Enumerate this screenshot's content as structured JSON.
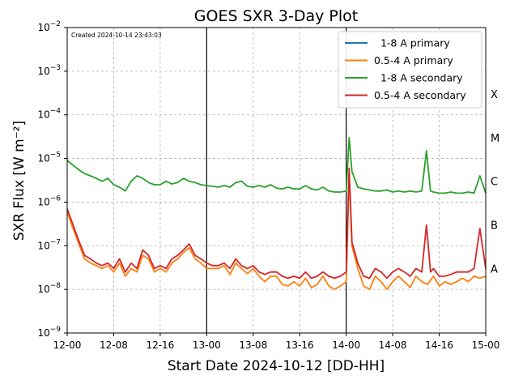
{
  "chart_data": {
    "type": "line",
    "title": "GOES SXR 3-Day Plot",
    "created_note": "Created 2024-10-14 23:43:03",
    "xlabel": "Start Date 2024-10-12 [DD-HH]",
    "ylabel": "SXR Flux [W m⁻²]",
    "x_unit": "hours since 2024-10-12 00:00 UTC",
    "xlim": [
      0,
      72
    ],
    "x_ticks": [
      {
        "hour": 0,
        "label": "12-00"
      },
      {
        "hour": 8,
        "label": "12-08"
      },
      {
        "hour": 16,
        "label": "12-16"
      },
      {
        "hour": 24,
        "label": "13-00"
      },
      {
        "hour": 32,
        "label": "13-08"
      },
      {
        "hour": 40,
        "label": "13-16"
      },
      {
        "hour": 48,
        "label": "14-00"
      },
      {
        "hour": 56,
        "label": "14-08"
      },
      {
        "hour": 64,
        "label": "14-16"
      },
      {
        "hour": 72,
        "label": "15-00"
      }
    ],
    "y_scale": "log",
    "ylim": [
      1e-09,
      0.01
    ],
    "y_ticks": [
      {
        "value": 1e-09,
        "base": "10",
        "exp": "−9"
      },
      {
        "value": 1e-08,
        "base": "10",
        "exp": "−8"
      },
      {
        "value": 1e-07,
        "base": "10",
        "exp": "−7"
      },
      {
        "value": 1e-06,
        "base": "10",
        "exp": "−6"
      },
      {
        "value": 1e-05,
        "base": "10",
        "exp": "−5"
      },
      {
        "value": 0.0001,
        "base": "10",
        "exp": "−4"
      },
      {
        "value": 0.001,
        "base": "10",
        "exp": "−3"
      },
      {
        "value": 0.01,
        "base": "10",
        "exp": "−2"
      }
    ],
    "grid": true,
    "day_boundaries": [
      24,
      48
    ],
    "flare_classes": [
      {
        "label": "A",
        "position": 3e-08
      },
      {
        "label": "B",
        "position": 3e-07
      },
      {
        "label": "C",
        "position": 3e-06
      },
      {
        "label": "M",
        "position": 3e-05
      },
      {
        "label": "X",
        "position": 0.0003
      }
    ],
    "legend_position": "top-right",
    "series": [
      {
        "name": "  1-8 A primary",
        "color": "#1f77b4",
        "points": []
      },
      {
        "name": "0.5-4 A primary",
        "color": "#ff7f0e",
        "points": [
          [
            0,
            6e-07
          ],
          [
            1,
            2.5e-07
          ],
          [
            2,
            1.1e-07
          ],
          [
            3,
            5e-08
          ],
          [
            4,
            4e-08
          ],
          [
            5,
            3.5e-08
          ],
          [
            6,
            3e-08
          ],
          [
            7,
            3.5e-08
          ],
          [
            8,
            2.5e-08
          ],
          [
            9,
            4e-08
          ],
          [
            10,
            2e-08
          ],
          [
            11,
            3e-08
          ],
          [
            12,
            2.5e-08
          ],
          [
            13,
            6e-08
          ],
          [
            14,
            5e-08
          ],
          [
            15,
            2.5e-08
          ],
          [
            16,
            3e-08
          ],
          [
            17,
            2.5e-08
          ],
          [
            18,
            4e-08
          ],
          [
            19,
            5e-08
          ],
          [
            20,
            7e-08
          ],
          [
            21,
            9e-08
          ],
          [
            22,
            5e-08
          ],
          [
            23,
            4e-08
          ],
          [
            24,
            3e-08
          ],
          [
            25,
            3e-08
          ],
          [
            26,
            3e-08
          ],
          [
            27,
            3.5e-08
          ],
          [
            28,
            2.2e-08
          ],
          [
            29,
            4e-08
          ],
          [
            30,
            3e-08
          ],
          [
            31,
            2.3e-08
          ],
          [
            32,
            3e-08
          ],
          [
            33,
            2e-08
          ],
          [
            34,
            1.5e-08
          ],
          [
            35,
            2e-08
          ],
          [
            36,
            2e-08
          ],
          [
            37,
            1.3e-08
          ],
          [
            38,
            1.2e-08
          ],
          [
            39,
            1.5e-08
          ],
          [
            40,
            1.2e-08
          ],
          [
            41,
            1.8e-08
          ],
          [
            42,
            1.1e-08
          ],
          [
            43,
            1.3e-08
          ],
          [
            44,
            2e-08
          ],
          [
            45,
            1.2e-08
          ],
          [
            46,
            1e-08
          ],
          [
            47,
            1.2e-08
          ],
          [
            48,
            1.5e-08
          ],
          [
            48.5,
            4e-06
          ],
          [
            49,
            1e-07
          ],
          [
            50,
            3e-08
          ],
          [
            51,
            1.2e-08
          ],
          [
            52,
            1e-08
          ],
          [
            53,
            2e-08
          ],
          [
            54,
            1.5e-08
          ],
          [
            55,
            1e-08
          ],
          [
            56,
            1.5e-08
          ],
          [
            57,
            2e-08
          ],
          [
            58,
            1.5e-08
          ],
          [
            59,
            1.1e-08
          ],
          [
            60,
            2e-08
          ],
          [
            61,
            1.5e-08
          ],
          [
            62,
            1.3e-08
          ],
          [
            63,
            2e-08
          ],
          [
            64,
            1.2e-08
          ],
          [
            65,
            1.5e-08
          ],
          [
            66,
            1.3e-08
          ],
          [
            67,
            1.5e-08
          ],
          [
            68,
            1.8e-08
          ],
          [
            69,
            1.5e-08
          ],
          [
            70,
            2e-08
          ],
          [
            71,
            1.8e-08
          ],
          [
            72,
            2e-08
          ]
        ]
      },
      {
        "name": "  1-8 A secondary",
        "color": "#2ca02c",
        "points": [
          [
            0,
            9e-06
          ],
          [
            1,
            7e-06
          ],
          [
            2,
            5.5e-06
          ],
          [
            3,
            4.5e-06
          ],
          [
            4,
            4e-06
          ],
          [
            5,
            3.5e-06
          ],
          [
            6,
            3e-06
          ],
          [
            7,
            3.5e-06
          ],
          [
            8,
            2.5e-06
          ],
          [
            9,
            2.2e-06
          ],
          [
            10,
            1.8e-06
          ],
          [
            11,
            3e-06
          ],
          [
            12,
            4e-06
          ],
          [
            13,
            3.5e-06
          ],
          [
            14,
            2.8e-06
          ],
          [
            15,
            2.5e-06
          ],
          [
            16,
            2.5e-06
          ],
          [
            17,
            3e-06
          ],
          [
            18,
            2.6e-06
          ],
          [
            19,
            2.8e-06
          ],
          [
            20,
            3.5e-06
          ],
          [
            21,
            3e-06
          ],
          [
            22,
            2.8e-06
          ],
          [
            23,
            2.5e-06
          ],
          [
            24,
            2.4e-06
          ],
          [
            25,
            2.3e-06
          ],
          [
            26,
            2.2e-06
          ],
          [
            27,
            2.4e-06
          ],
          [
            28,
            2.2e-06
          ],
          [
            29,
            2.8e-06
          ],
          [
            30,
            3e-06
          ],
          [
            31,
            2.3e-06
          ],
          [
            32,
            2.2e-06
          ],
          [
            33,
            2.4e-06
          ],
          [
            34,
            2.2e-06
          ],
          [
            35,
            2.5e-06
          ],
          [
            36,
            2.1e-06
          ],
          [
            37,
            2e-06
          ],
          [
            38,
            2.2e-06
          ],
          [
            39,
            2e-06
          ],
          [
            40,
            2e-06
          ],
          [
            41,
            2.4e-06
          ],
          [
            42,
            2e-06
          ],
          [
            43,
            1.9e-06
          ],
          [
            44,
            2.2e-06
          ],
          [
            45,
            1.8e-06
          ],
          [
            46,
            1.7e-06
          ],
          [
            47,
            1.7e-06
          ],
          [
            48,
            1.8e-06
          ],
          [
            48.5,
            3e-05
          ],
          [
            49,
            5e-06
          ],
          [
            50,
            2.2e-06
          ],
          [
            51,
            2e-06
          ],
          [
            52,
            1.9e-06
          ],
          [
            53,
            1.8e-06
          ],
          [
            54,
            1.8e-06
          ],
          [
            55,
            1.9e-06
          ],
          [
            56,
            1.7e-06
          ],
          [
            57,
            1.8e-06
          ],
          [
            58,
            1.7e-06
          ],
          [
            59,
            1.8e-06
          ],
          [
            60,
            1.7e-06
          ],
          [
            61,
            1.8e-06
          ],
          [
            61.8,
            1.5e-05
          ],
          [
            62.5,
            1.8e-06
          ],
          [
            63,
            1.7e-06
          ],
          [
            64,
            1.6e-06
          ],
          [
            65,
            1.6e-06
          ],
          [
            66,
            1.7e-06
          ],
          [
            67,
            1.6e-06
          ],
          [
            68,
            1.6e-06
          ],
          [
            69,
            1.7e-06
          ],
          [
            70,
            1.6e-06
          ],
          [
            71,
            4e-06
          ],
          [
            72,
            1.6e-06
          ]
        ]
      },
      {
        "name": "0.5-4 A secondary",
        "color": "#d62728",
        "points": [
          [
            0,
            7e-07
          ],
          [
            1,
            3e-07
          ],
          [
            2,
            1.3e-07
          ],
          [
            3,
            6e-08
          ],
          [
            4,
            5e-08
          ],
          [
            5,
            4e-08
          ],
          [
            6,
            3.5e-08
          ],
          [
            7,
            4e-08
          ],
          [
            8,
            3e-08
          ],
          [
            9,
            5e-08
          ],
          [
            10,
            2.5e-08
          ],
          [
            11,
            4e-08
          ],
          [
            12,
            3e-08
          ],
          [
            13,
            8e-08
          ],
          [
            14,
            6e-08
          ],
          [
            15,
            3e-08
          ],
          [
            16,
            3.5e-08
          ],
          [
            17,
            3e-08
          ],
          [
            18,
            5e-08
          ],
          [
            19,
            6e-08
          ],
          [
            20,
            8e-08
          ],
          [
            21,
            1.1e-07
          ],
          [
            22,
            6e-08
          ],
          [
            23,
            5e-08
          ],
          [
            24,
            4e-08
          ],
          [
            25,
            3.5e-08
          ],
          [
            26,
            3.5e-08
          ],
          [
            27,
            4e-08
          ],
          [
            28,
            3e-08
          ],
          [
            29,
            5e-08
          ],
          [
            30,
            3.5e-08
          ],
          [
            31,
            3e-08
          ],
          [
            32,
            3.5e-08
          ],
          [
            33,
            2.5e-08
          ],
          [
            34,
            2.2e-08
          ],
          [
            35,
            2.5e-08
          ],
          [
            36,
            2.5e-08
          ],
          [
            37,
            2e-08
          ],
          [
            38,
            1.8e-08
          ],
          [
            39,
            2e-08
          ],
          [
            40,
            1.8e-08
          ],
          [
            41,
            2.5e-08
          ],
          [
            42,
            1.8e-08
          ],
          [
            43,
            2e-08
          ],
          [
            44,
            2.5e-08
          ],
          [
            45,
            2e-08
          ],
          [
            46,
            1.8e-08
          ],
          [
            47,
            2e-08
          ],
          [
            48,
            2.5e-08
          ],
          [
            48.5,
            6e-06
          ],
          [
            49,
            1.2e-07
          ],
          [
            50,
            4e-08
          ],
          [
            51,
            2e-08
          ],
          [
            52,
            1.8e-08
          ],
          [
            53,
            3e-08
          ],
          [
            54,
            2.5e-08
          ],
          [
            55,
            1.8e-08
          ],
          [
            56,
            2.5e-08
          ],
          [
            57,
            3e-08
          ],
          [
            58,
            2.5e-08
          ],
          [
            59,
            2e-08
          ],
          [
            60,
            3e-08
          ],
          [
            61,
            2.5e-08
          ],
          [
            61.8,
            3e-07
          ],
          [
            62.5,
            2.5e-08
          ],
          [
            63,
            3e-08
          ],
          [
            64,
            2e-08
          ],
          [
            65,
            2e-08
          ],
          [
            66,
            2.2e-08
          ],
          [
            67,
            2.5e-08
          ],
          [
            68,
            2.5e-08
          ],
          [
            69,
            2.5e-08
          ],
          [
            70,
            3e-08
          ],
          [
            71,
            2.5e-07
          ],
          [
            72,
            3e-08
          ]
        ]
      }
    ]
  }
}
